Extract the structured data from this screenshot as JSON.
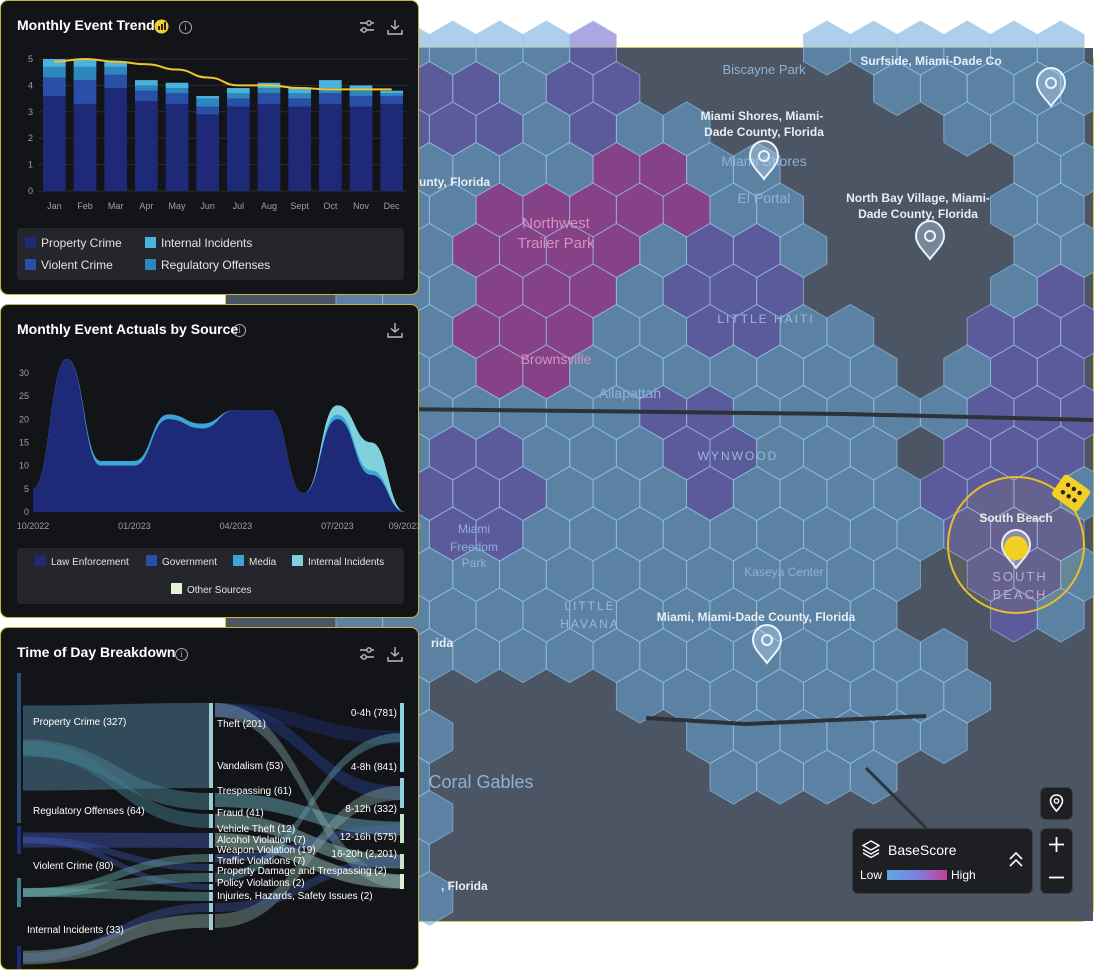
{
  "trend_panel": {
    "title": "Monthly Event Trend",
    "chart_data": {
      "type": "bar",
      "categories": [
        "Jan",
        "Feb",
        "Mar",
        "Apr",
        "May",
        "Jun",
        "Jul",
        "Aug",
        "Sept",
        "Oct",
        "Nov",
        "Dec"
      ],
      "series": [
        {
          "name": "Property Crime",
          "values": [
            3.6,
            3.3,
            3.9,
            3.4,
            3.3,
            2.9,
            3.2,
            3.3,
            3.2,
            3.3,
            3.2,
            3.3
          ],
          "color": "#1e2a78"
        },
        {
          "name": "Violent Crime",
          "values": [
            0.7,
            0.9,
            0.5,
            0.4,
            0.4,
            0.3,
            0.3,
            0.4,
            0.3,
            0.4,
            0.4,
            0.3
          ],
          "color": "#2a4fa8"
        },
        {
          "name": "Regulatory Offenses",
          "values": [
            0.4,
            0.5,
            0.3,
            0.2,
            0.2,
            0.3,
            0.2,
            0.2,
            0.2,
            0.2,
            0.2,
            0.1
          ],
          "color": "#2e86bf"
        },
        {
          "name": "Internal Incidents",
          "values": [
            0.3,
            0.3,
            0.2,
            0.2,
            0.2,
            0.1,
            0.2,
            0.2,
            0.2,
            0.3,
            0.2,
            0.1
          ],
          "color": "#4ab3dc"
        }
      ],
      "trend_line": [
        4.9,
        5.0,
        4.9,
        4.8,
        4.6,
        4.3,
        4.0,
        4.0,
        3.9,
        3.85,
        3.85,
        3.85
      ],
      "ylim": [
        0,
        5
      ],
      "yticks": [
        "0",
        "1",
        "2",
        "3",
        "4",
        "5"
      ]
    }
  },
  "actuals_panel": {
    "title": "Monthly Event Actuals by Source",
    "chart_data": {
      "type": "area",
      "x": [
        "10/2022",
        "11/2022",
        "12/2022",
        "01/2023",
        "02/2023",
        "03/2023",
        "04/2023",
        "05/2023",
        "06/2023",
        "07/2023",
        "08/2023",
        "09/2023"
      ],
      "xticks": [
        "10/2022",
        "01/2023",
        "04/2023",
        "07/2023",
        "09/2023"
      ],
      "series": [
        {
          "name": "Law Enforcement",
          "values": [
            5,
            33,
            10,
            10,
            20,
            18,
            22,
            22,
            4,
            20,
            8,
            0
          ],
          "color": "#1e2a78"
        },
        {
          "name": "Government",
          "values": [
            0,
            0,
            0,
            0,
            0,
            0,
            0,
            0,
            0,
            0,
            0,
            0
          ],
          "color": "#2a4fa8"
        },
        {
          "name": "Media",
          "values": [
            0,
            0,
            1,
            1,
            1,
            1,
            0,
            0,
            0,
            1,
            1,
            0
          ],
          "color": "#3aa6d8"
        },
        {
          "name": "Internal Incidents",
          "values": [
            0,
            0,
            0,
            0,
            0,
            0,
            0,
            0,
            0,
            2,
            6,
            0
          ],
          "color": "#7fd1dc"
        },
        {
          "name": "Other Sources",
          "values": [
            0,
            0,
            0,
            0,
            0,
            0,
            0,
            0,
            0,
            0,
            0,
            0
          ],
          "color": "#e2f0d6"
        }
      ],
      "ylim": [
        0,
        33
      ],
      "yticks": [
        "0",
        "5",
        "10",
        "15",
        "20",
        "25",
        "30"
      ]
    }
  },
  "time_panel": {
    "title": "Time of Day Breakdown",
    "sources": [
      {
        "label": "Property Crime (327)"
      },
      {
        "label": "Regulatory Offenses (64)"
      },
      {
        "label": "Violent Crime (80)"
      },
      {
        "label": "Internal Incidents (33)"
      }
    ],
    "types": [
      {
        "label": "Theft (201)"
      },
      {
        "label": "Vandalism (53)"
      },
      {
        "label": "Trespassing (61)"
      },
      {
        "label": "Fraud (41)"
      },
      {
        "label": "Vehicle Theft (12)"
      },
      {
        "label": "Alcohol Violation (7)"
      },
      {
        "label": "Weapon Violation (19)"
      },
      {
        "label": "Traffic Violations (7)"
      },
      {
        "label": "Property Damage and Trespassing (2)"
      },
      {
        "label": "Policy Violations (2)"
      },
      {
        "label": "Injuries, Hazards, Safety Issues (2)"
      }
    ],
    "times": [
      {
        "label": "0-4h (781)"
      },
      {
        "label": "4-8h (841)"
      },
      {
        "label": "8-12h (332)"
      },
      {
        "label": "12-16h (575)"
      },
      {
        "label": "16-20h (2,201)"
      }
    ]
  },
  "map": {
    "labels": [
      {
        "text": "Biscayne Park",
        "color": "#8fb2d6"
      },
      {
        "text": "Surfside, Miami-Dade Co",
        "color": "#e8eef6"
      },
      {
        "text": "Miami Shores, Miami-",
        "color": "#e8eef6"
      },
      {
        "text": "Dade County, Florida",
        "color": "#e8eef6"
      },
      {
        "text": "Miami Shores",
        "color": "#8fb2d6"
      },
      {
        "text": "El Portal",
        "color": "#8fb2d6"
      },
      {
        "text": "unty, Florida",
        "color": "#e8eef6"
      },
      {
        "text": "North Bay Village, Miami-",
        "color": "#e8eef6"
      },
      {
        "text": "Dade County, Florida",
        "color": "#e8eef6"
      },
      {
        "text": "Northwest",
        "color": "#d591c2"
      },
      {
        "text": "Trailer Park",
        "color": "#d591c2"
      },
      {
        "text": "LITTLE HAITI",
        "color": "#9db7d4"
      },
      {
        "text": "Brownsville",
        "color": "#d591c2"
      },
      {
        "text": "Allapattah",
        "color": "#8fb2d6"
      },
      {
        "text": "WYNWOOD",
        "color": "#9db7d4"
      },
      {
        "text": "South Beach",
        "color": "#e8eef6"
      },
      {
        "text": "SOUTH",
        "color": "#b4a8d8"
      },
      {
        "text": "BEACH",
        "color": "#b4a8d8"
      },
      {
        "text": "Miami",
        "color": "#8fb2d6"
      },
      {
        "text": "Freedom",
        "color": "#8fb2d6"
      },
      {
        "text": "Park",
        "color": "#8fb2d6"
      },
      {
        "text": "Kaseya Center",
        "color": "#8fb2d6"
      },
      {
        "text": "LITTLE",
        "color": "#9db7d4"
      },
      {
        "text": "HAVANA",
        "color": "#9db7d4"
      },
      {
        "text": "Miami, Miami-Dade County, Florida",
        "color": "#e8eef6"
      },
      {
        "text": "rida",
        "color": "#e8eef6"
      },
      {
        "text": "Coral Gables",
        "color": "#8fb2d6"
      },
      {
        "text": ", Florida",
        "color": "#e8eef6"
      }
    ],
    "basescore": {
      "title": "BaseScore",
      "low": "Low",
      "high": "High"
    },
    "accent": "#f5d024"
  }
}
